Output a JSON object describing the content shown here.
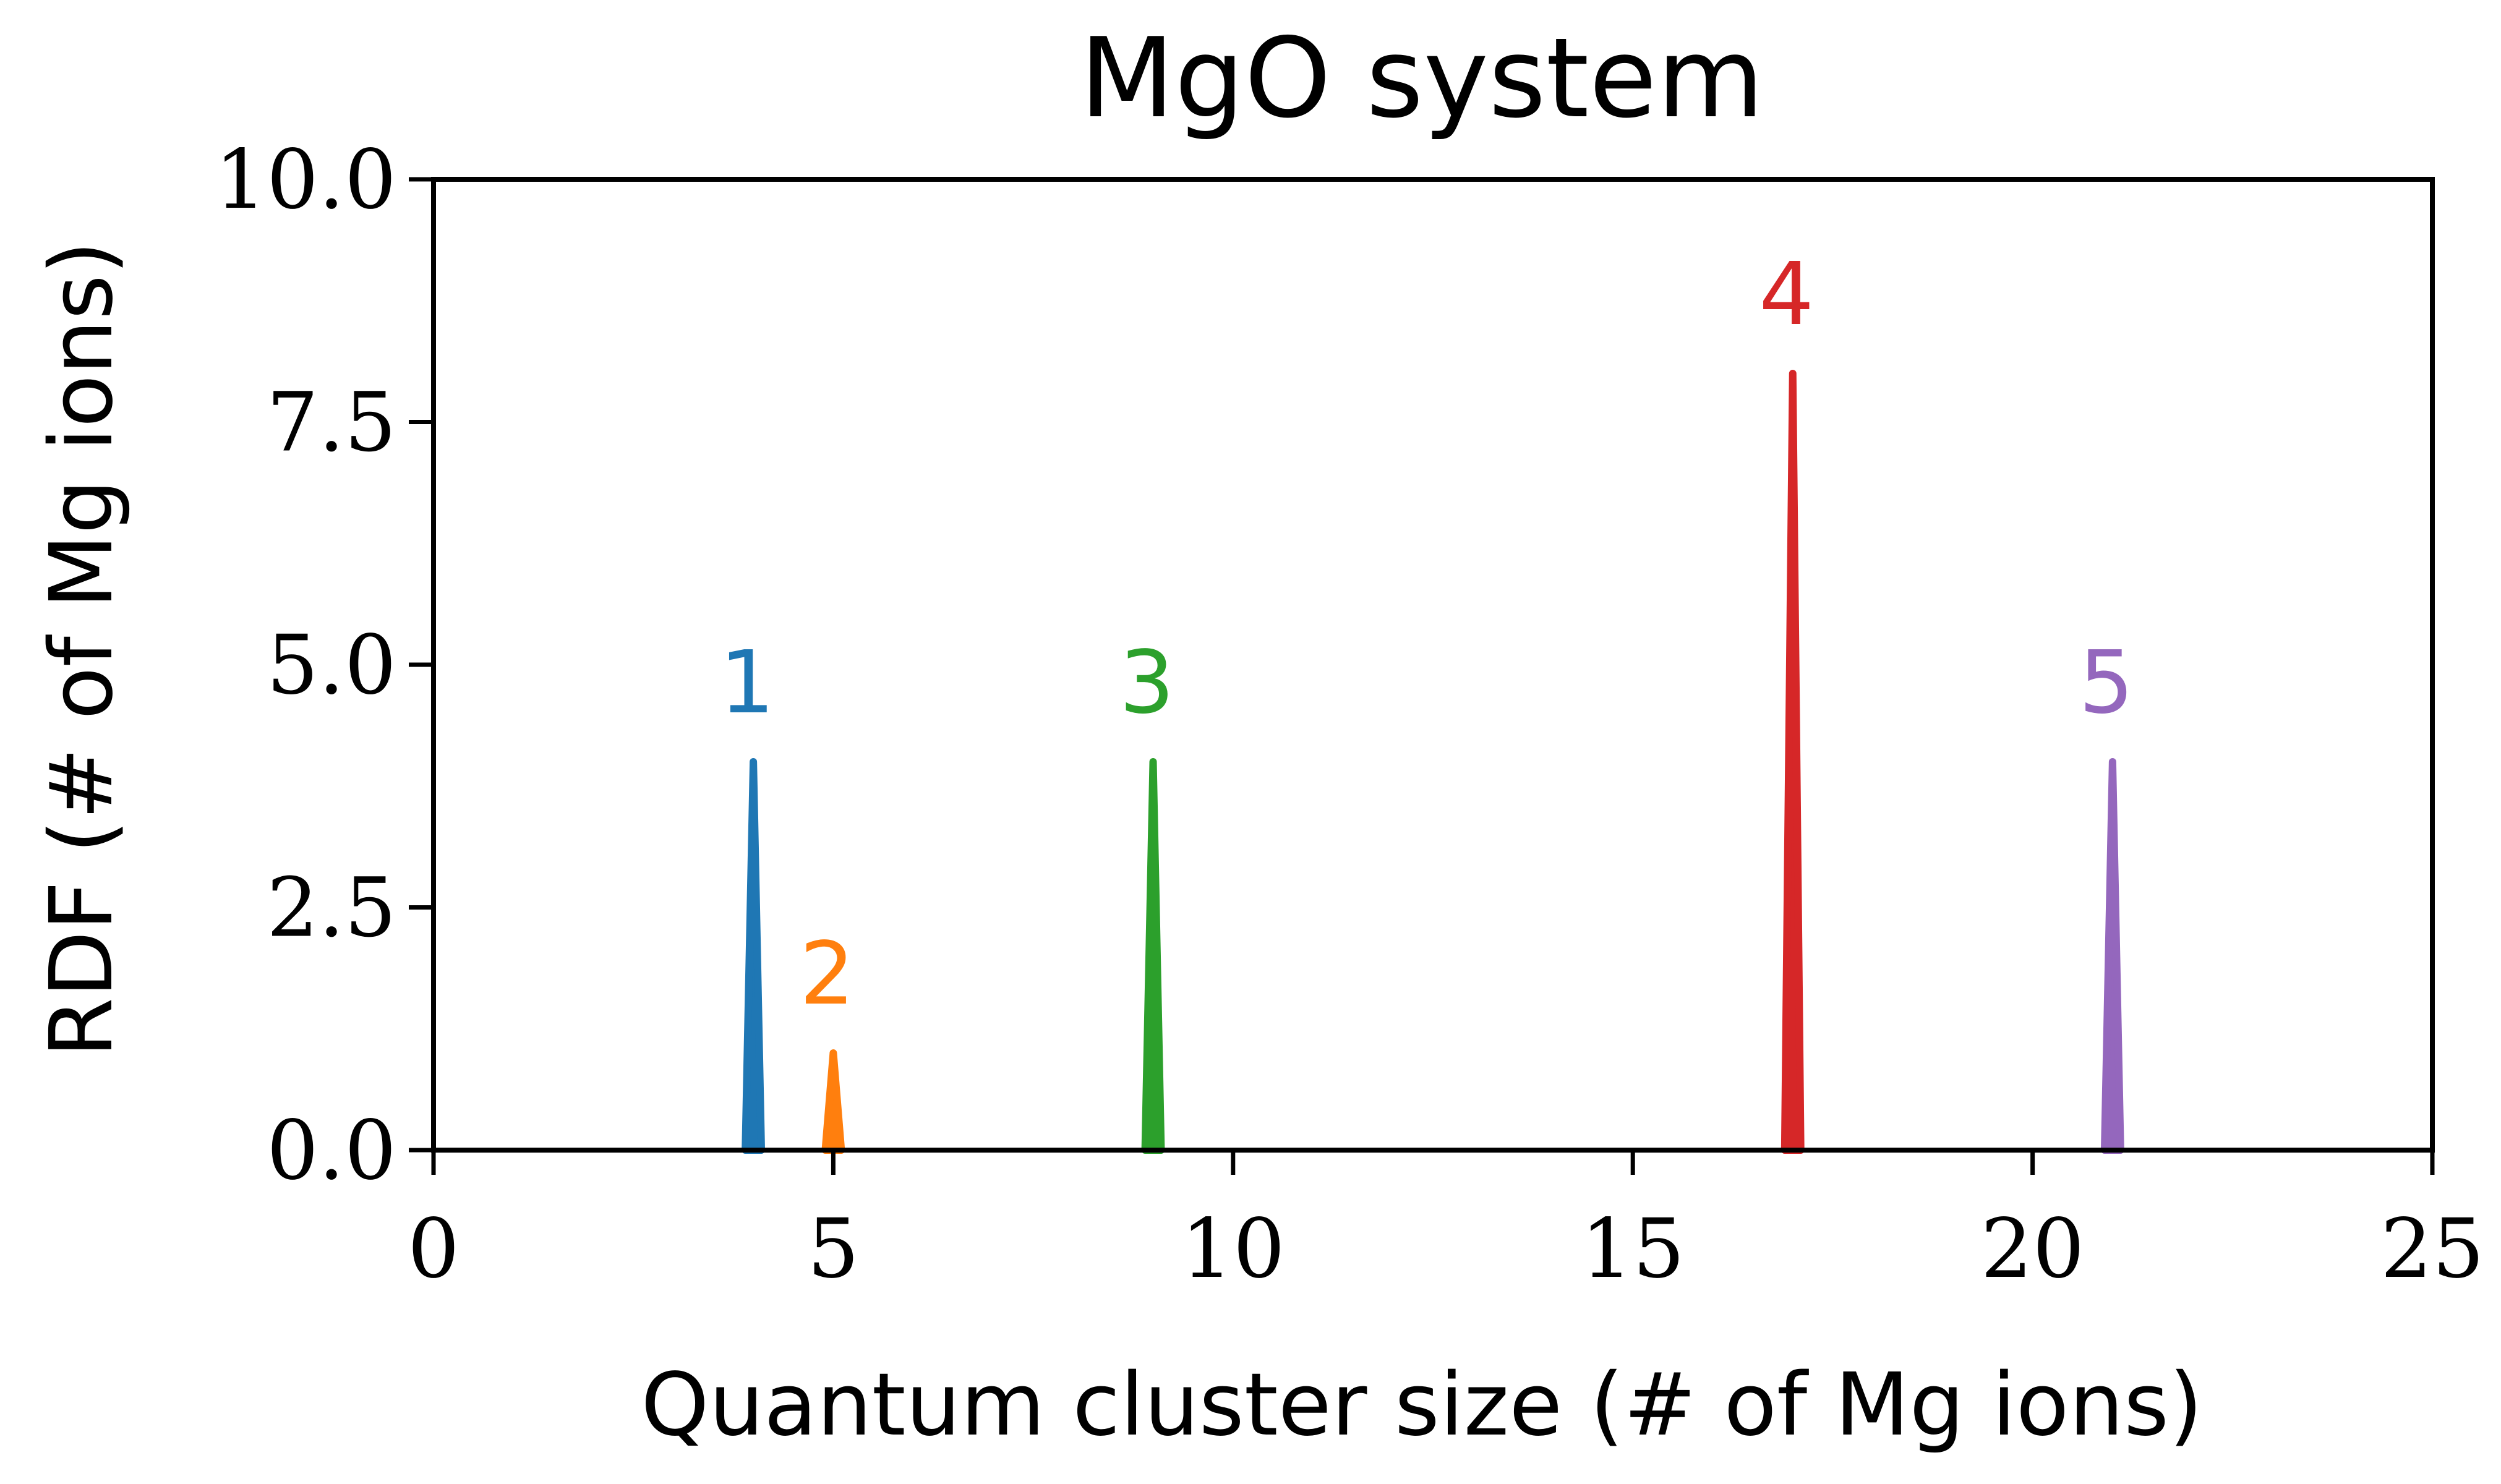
{
  "chart_data": {
    "type": "line",
    "title": "MgO system",
    "xlabel": "Quantum cluster size (# of Mg ions)",
    "ylabel": "RDF (# of Mg ions)",
    "xlim": [
      0,
      25
    ],
    "ylim": [
      0,
      10
    ],
    "xticks": [
      0,
      5,
      10,
      15,
      20,
      25
    ],
    "xtick_labels": [
      "0",
      "5",
      "10",
      "15",
      "20",
      "25"
    ],
    "yticks": [
      0,
      2.5,
      5,
      7.5,
      10
    ],
    "ytick_labels": [
      "0.0",
      "2.5",
      "5.0",
      "7.5",
      "10.0"
    ],
    "grid": false,
    "peak_half_width": 0.1,
    "peaks": [
      {
        "label": "1",
        "x": 4,
        "y": 4,
        "color": "#1f77b4"
      },
      {
        "label": "2",
        "x": 5,
        "y": 1,
        "color": "#ff7f0e"
      },
      {
        "label": "3",
        "x": 9,
        "y": 4,
        "color": "#2ca02c"
      },
      {
        "label": "4",
        "x": 17,
        "y": 8,
        "color": "#d62728"
      },
      {
        "label": "5",
        "x": 21,
        "y": 4,
        "color": "#9467bd"
      }
    ]
  }
}
